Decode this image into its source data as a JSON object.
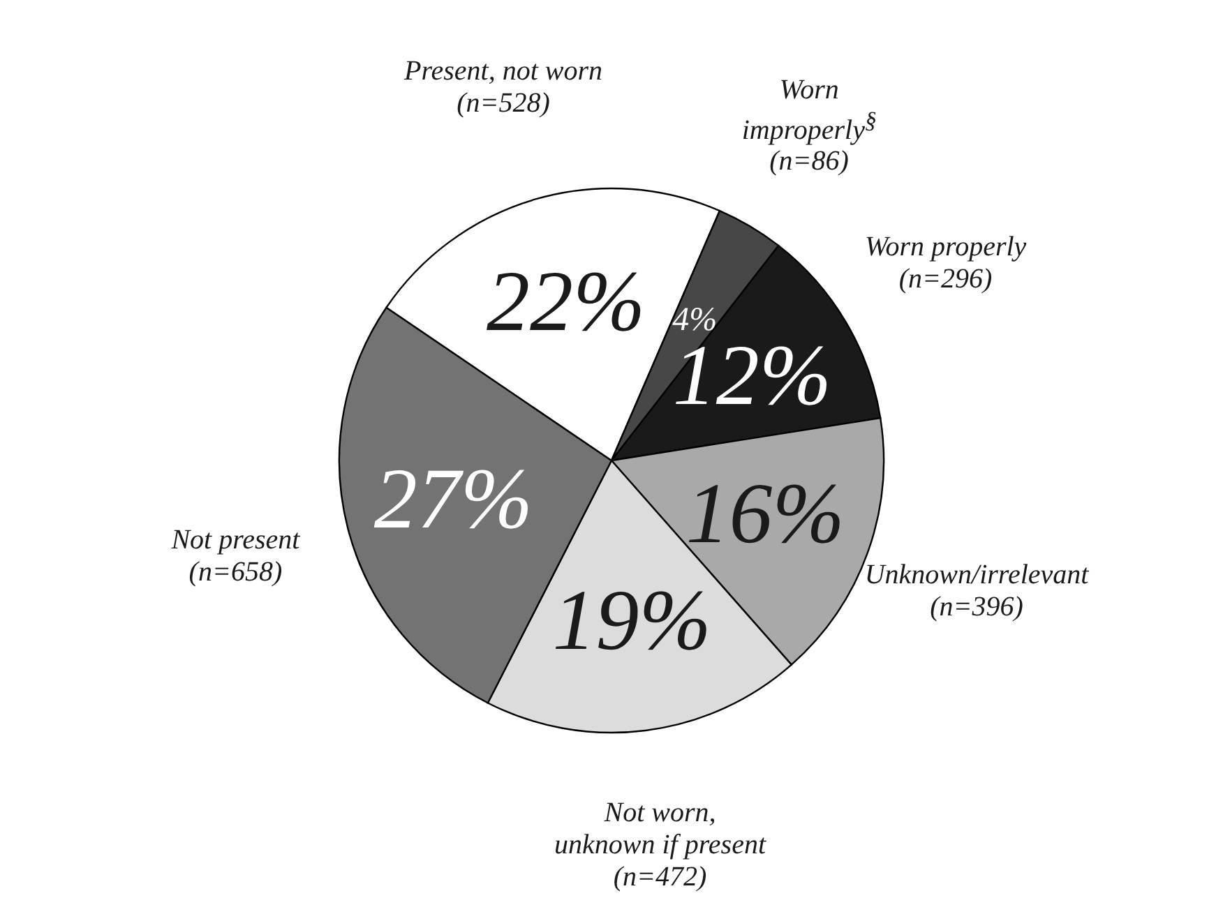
{
  "chart_data": {
    "type": "pie",
    "categories": [
      "Worn properly\n(n=296)",
      "Unknown/irrelevant\n(n=396)",
      "Not worn,\nunknown if present\n(n=472)",
      "Not present\n(n=658)",
      "Present, not worn\n(n=528)",
      "Worn\nimproperly$^{§}$\n(n=86)"
    ],
    "values": [
      12,
      16,
      19,
      27,
      22,
      4
    ],
    "value_labels": [
      "12%",
      "16%",
      "19%",
      "27%",
      "22%",
      "4%"
    ],
    "colors": [
      "#1a1a1a",
      "#a9a9a9",
      "#dcdcdc",
      "#737373",
      "#ffffff",
      "#474747"
    ]
  }
}
